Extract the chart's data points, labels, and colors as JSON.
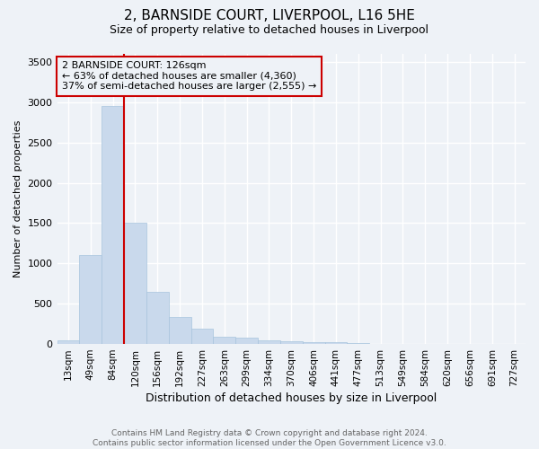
{
  "title1": "2, BARNSIDE COURT, LIVERPOOL, L16 5HE",
  "title2": "Size of property relative to detached houses in Liverpool",
  "xlabel": "Distribution of detached houses by size in Liverpool",
  "ylabel": "Number of detached properties",
  "bin_labels": [
    "13sqm",
    "49sqm",
    "84sqm",
    "120sqm",
    "156sqm",
    "192sqm",
    "227sqm",
    "263sqm",
    "299sqm",
    "334sqm",
    "370sqm",
    "406sqm",
    "441sqm",
    "477sqm",
    "513sqm",
    "549sqm",
    "584sqm",
    "620sqm",
    "656sqm",
    "691sqm",
    "727sqm"
  ],
  "bar_heights": [
    50,
    1100,
    2950,
    1510,
    650,
    330,
    195,
    95,
    80,
    45,
    30,
    25,
    20,
    10,
    5,
    5,
    3,
    2,
    1,
    1,
    1
  ],
  "bar_color": "#c9d9ec",
  "bar_edgecolor": "#a8c4dd",
  "property_line_color": "#cc0000",
  "annotation_text": "2 BARNSIDE COURT: 126sqm\n← 63% of detached houses are smaller (4,360)\n37% of semi-detached houses are larger (2,555) →",
  "annotation_box_color": "#cc0000",
  "ylim": [
    0,
    3600
  ],
  "yticks": [
    0,
    500,
    1000,
    1500,
    2000,
    2500,
    3000,
    3500
  ],
  "footer_text": "Contains HM Land Registry data © Crown copyright and database right 2024.\nContains public sector information licensed under the Open Government Licence v3.0.",
  "background_color": "#eef2f7",
  "grid_color": "#ffffff",
  "title1_fontsize": 11,
  "title2_fontsize": 9,
  "ylabel_fontsize": 8,
  "xlabel_fontsize": 9
}
